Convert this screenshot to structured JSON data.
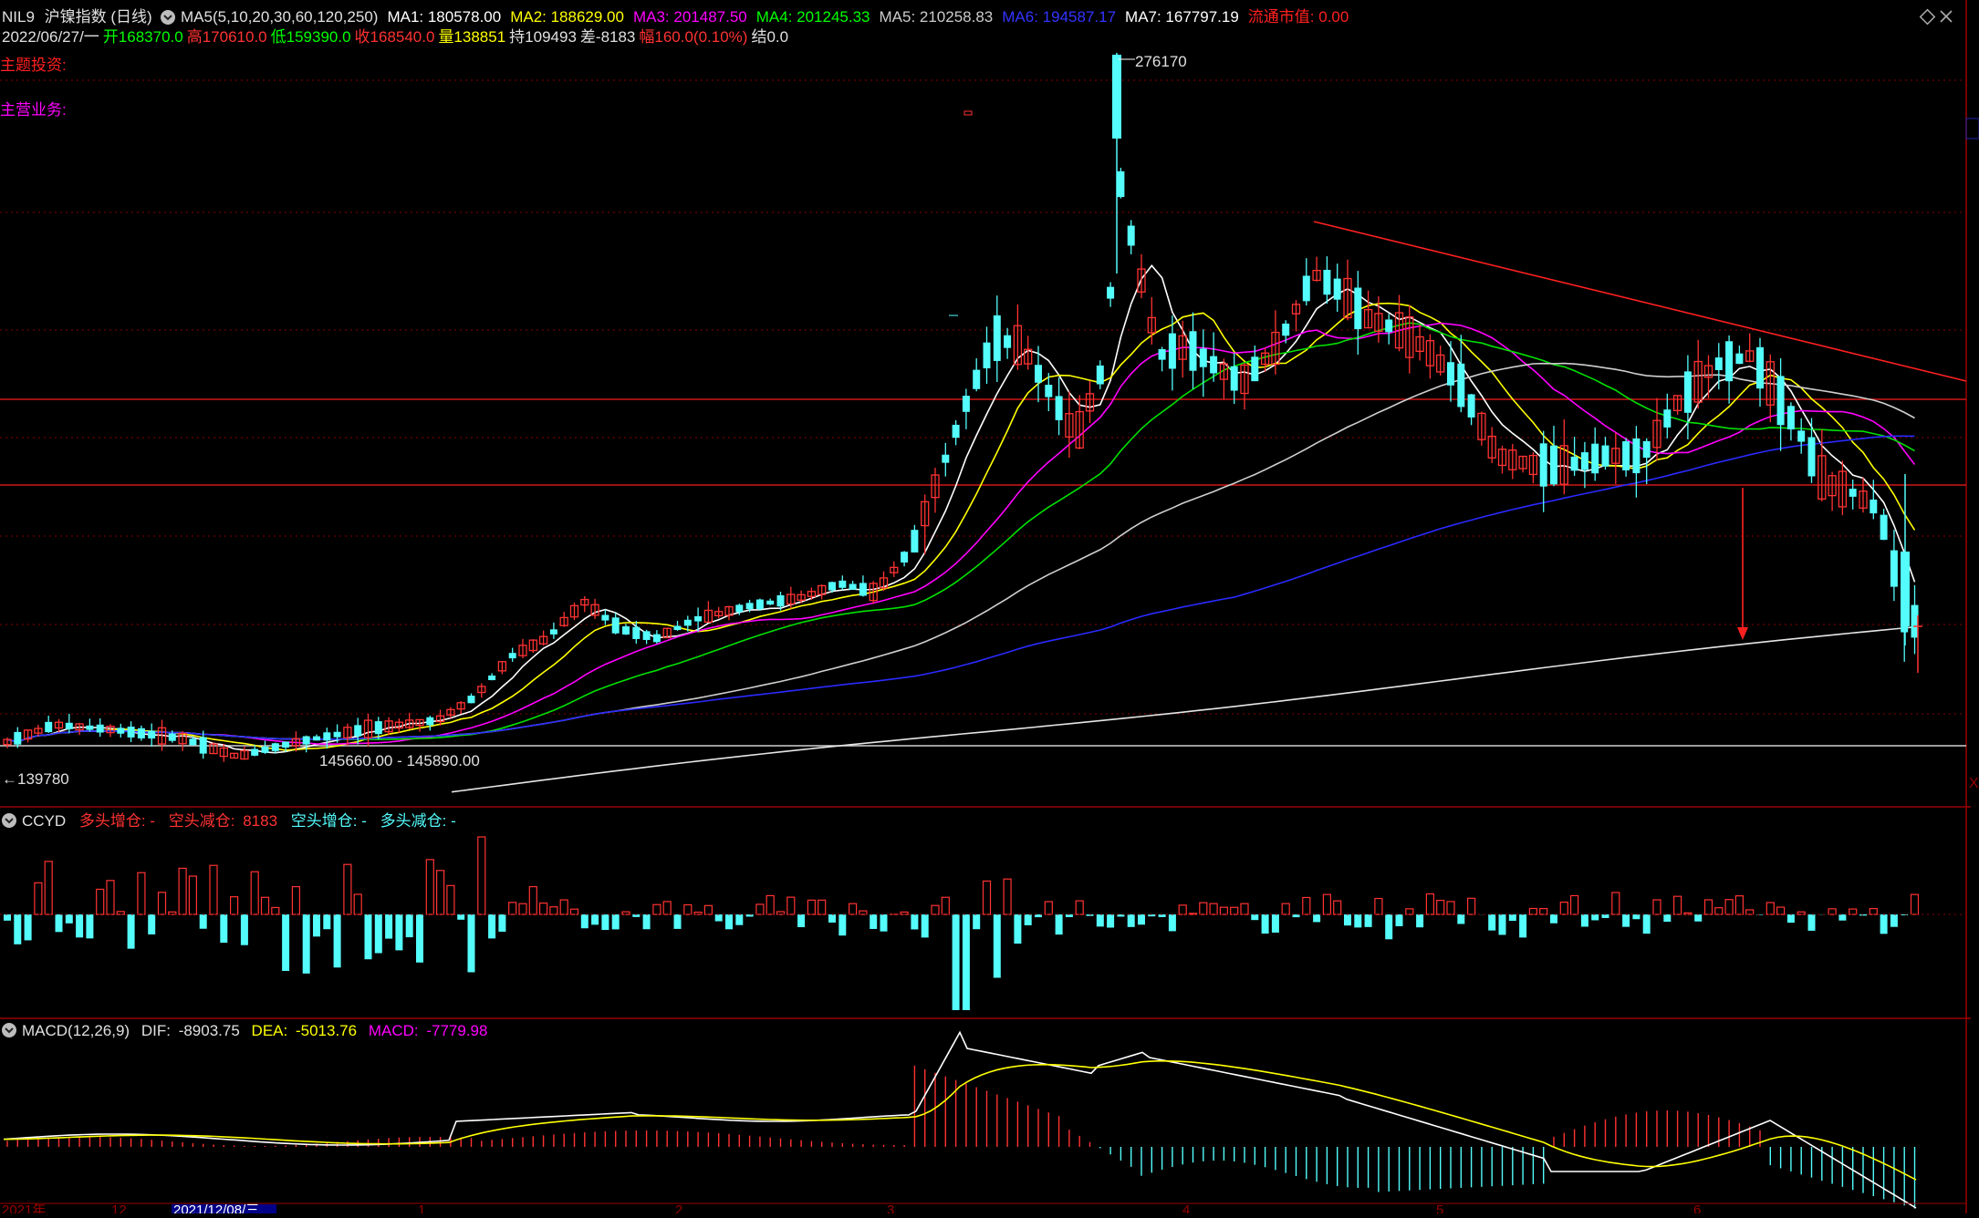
{
  "header": {
    "symbol": "NIL9",
    "name": "沪镍指数",
    "period": "(日线)",
    "ma_group": "MA5(5,10,20,30,60,120,250)",
    "ma": [
      {
        "label": "MA1:",
        "value": "180578.00",
        "color": "#ffffff"
      },
      {
        "label": "MA2:",
        "value": "188629.00",
        "color": "#ffff00"
      },
      {
        "label": "MA3:",
        "value": "201487.50",
        "color": "#ff00ff"
      },
      {
        "label": "MA4:",
        "value": "201245.33",
        "color": "#00ff00"
      },
      {
        "label": "MA5:",
        "value": "210258.83",
        "color": "#cccccc"
      },
      {
        "label": "MA6:",
        "value": "194587.17",
        "color": "#3333ff"
      },
      {
        "label": "MA7:",
        "value": "167797.19",
        "color": "#ffffff"
      }
    ],
    "float_mcap_label": "流通市值:",
    "float_mcap_value": "0.00",
    "date": "2022/06/27/一",
    "open_label": "开",
    "open": "168370.0",
    "high_label": "高",
    "high": "170610.0",
    "low_label": "低",
    "low": "159390.0",
    "close_label": "收",
    "close": "168540.0",
    "vol_label": "量",
    "vol": "138851",
    "oi_label": "持",
    "oi": "109493",
    "diff_label": "差",
    "diff": "-8183",
    "chg_label": "幅",
    "chg": "160.0(0.10%)",
    "settle_label": "结",
    "settle": "0.0"
  },
  "side_labels": {
    "theme": "主题投资:",
    "business": "主营业务:"
  },
  "annotations": {
    "peak": "276170",
    "low_point": "139780",
    "range_label": "145660.00 - 145890.00"
  },
  "ccyd": {
    "title": "CCYD",
    "long_add": "多头增仓: -",
    "short_reduce_label": "空头减仓:",
    "short_reduce_value": "8183",
    "short_add": "空头增仓: -",
    "long_reduce": "多头减仓: -"
  },
  "macd": {
    "title": "MACD(12,26,9)",
    "dif_label": "DIF:",
    "dif": "-8903.75",
    "dea_label": "DEA:",
    "dea": "-5013.76",
    "macd_label": "MACD:",
    "macd": "-7779.98"
  },
  "time_axis": {
    "start": "2021年",
    "m12": "12",
    "cursor_date": "2021/12/08/三",
    "m1": "1",
    "m2": "2",
    "m3": "3",
    "m4": "4",
    "m5": "5",
    "m6": "6"
  },
  "colors": {
    "up": "#ff3232",
    "down": "#54fcfc",
    "separator": "#b00000",
    "trendline": "#ff2020"
  },
  "icons": {
    "settings": "circle-chevron-icon",
    "diamond": "diamond-icon",
    "close": "close-icon"
  }
}
